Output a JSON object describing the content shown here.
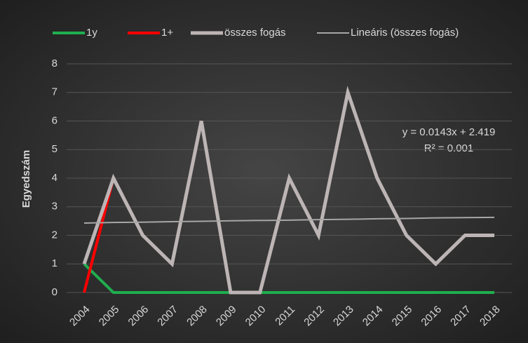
{
  "chart_data": {
    "type": "line",
    "y_label": "Egyedszám",
    "categories": [
      "2004",
      "2005",
      "2006",
      "2007",
      "2008",
      "2009",
      "2010",
      "2011",
      "2012",
      "2013",
      "2014",
      "2015",
      "2016",
      "2017",
      "2018"
    ],
    "series": [
      {
        "name": "1y",
        "color": "#1fae4e",
        "width": 4,
        "values": [
          1,
          0,
          0,
          0,
          0,
          0,
          0,
          0,
          0,
          0,
          0,
          0,
          0,
          0,
          0
        ]
      },
      {
        "name": "1+",
        "color": "#ff0000",
        "width": 4,
        "values": [
          0,
          4,
          2,
          1,
          6,
          0,
          0,
          4,
          2,
          7,
          4,
          2,
          1,
          2,
          2
        ]
      },
      {
        "name": "összes fogás",
        "color": "#bdb5b5",
        "width": 5,
        "values": [
          1,
          4,
          2,
          1,
          6,
          0,
          0,
          4,
          2,
          7,
          4,
          2,
          1,
          2,
          2
        ]
      },
      {
        "name": "Lineáris (összes fogás)",
        "color": "#a6a6a6",
        "width": 2,
        "values": [
          2.43,
          2.45,
          2.46,
          2.48,
          2.49,
          2.51,
          2.52,
          2.53,
          2.55,
          2.56,
          2.58,
          2.59,
          2.61,
          2.62,
          2.63
        ]
      }
    ],
    "annotations": [
      "y = 0.0143x + 2.419",
      "R² = 0.001"
    ],
    "ylim": [
      0,
      8
    ],
    "yticks": [
      0,
      1,
      2,
      3,
      4,
      5,
      6,
      7,
      8
    ],
    "grid": true,
    "legend": "top"
  }
}
